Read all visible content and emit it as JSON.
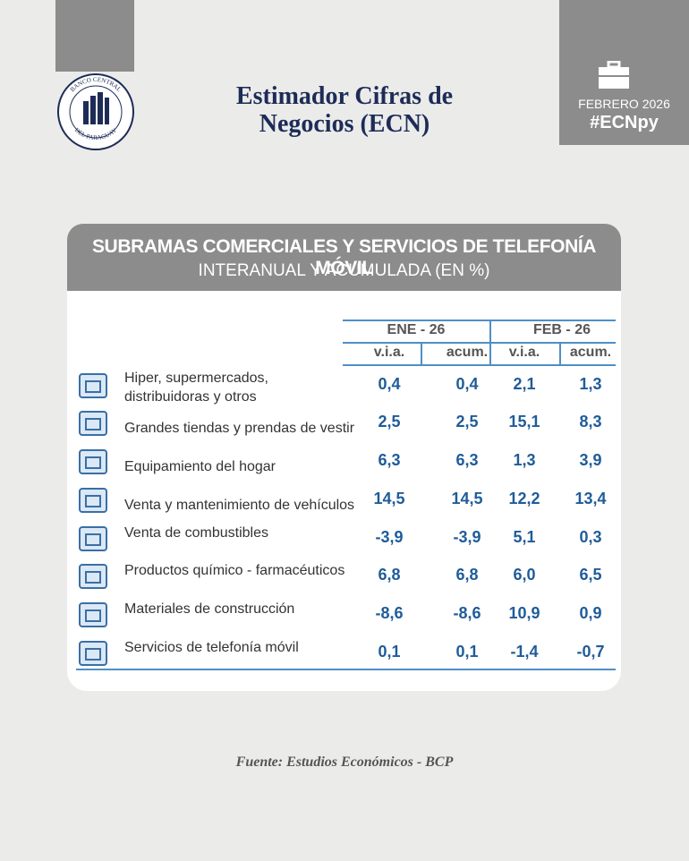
{
  "logo": {
    "top": "BANCO CENTRAL",
    "bottom": "DEL PARAGUAY"
  },
  "header": {
    "title_lines": [
      "Estimador Cifras de",
      "Negocios (ECN)"
    ]
  },
  "badge": {
    "date": "FEBRERO 2026",
    "hashtag": "#ECNpy"
  },
  "banner": {
    "title": "SUBRAMAS COMERCIALES Y SERVICIOS DE TELEFONÍA MÓVIL",
    "subtitle": "INTERANUAL Y ACUMULADA (EN %)"
  },
  "table": {
    "groups": [
      "ENE - 26",
      "FEB - 26"
    ],
    "columns": [
      "v.i.a.",
      "acum.",
      "v.i.a.",
      "acum."
    ],
    "rows": [
      {
        "label": "Hiper, supermercados, distribuidoras y otros",
        "values": [
          "0,4",
          "0,4",
          "2,1",
          "1,3"
        ]
      },
      {
        "label": "Grandes tiendas y prendas de vestir",
        "values": [
          "2,5",
          "2,5",
          "15,1",
          "8,3"
        ]
      },
      {
        "label": "Equipamiento del hogar",
        "values": [
          "6,3",
          "6,3",
          "1,3",
          "3,9"
        ]
      },
      {
        "label": "Venta y mantenimiento de vehículos",
        "values": [
          "14,5",
          "14,5",
          "12,2",
          "13,4"
        ]
      },
      {
        "label": "Venta de combustibles",
        "values": [
          "-3,9",
          "-3,9",
          "5,1",
          "0,3"
        ]
      },
      {
        "label": "Productos químico - farmacéuticos",
        "values": [
          "6,8",
          "6,8",
          "6,0",
          "6,5"
        ]
      },
      {
        "label": "Materiales de construcción",
        "values": [
          "-8,6",
          "-8,6",
          "10,9",
          "0,9"
        ]
      },
      {
        "label": "Servicios de telefonía móvil",
        "values": [
          "0,1",
          "0,1",
          "-1,4",
          "-0,7"
        ]
      }
    ]
  },
  "source": "Fuente: Estudios Económicos - BCP"
}
